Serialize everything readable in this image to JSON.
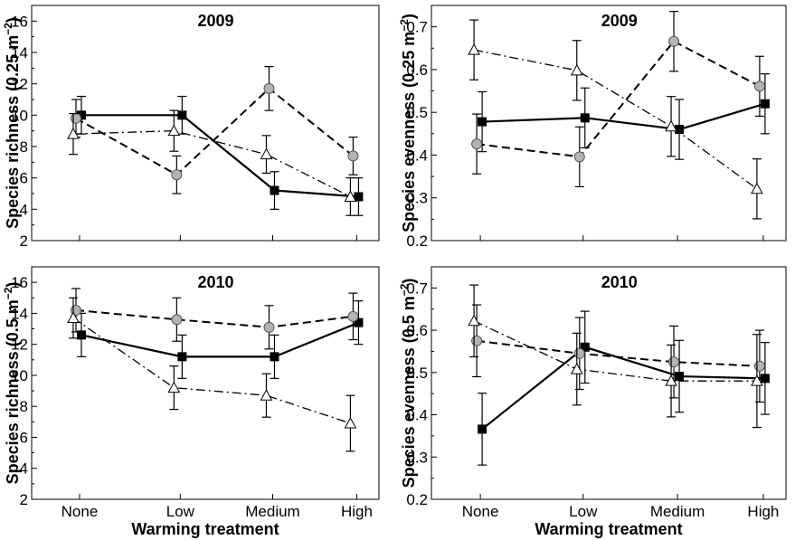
{
  "xlabel": "Warming treatment",
  "chart_data": [
    {
      "type": "line",
      "title": "2009",
      "ylabel": "Species richness (0.25 m",
      "ylabel_sup": "−2",
      "ylabel_end": ")",
      "ylim": [
        2,
        17
      ],
      "yticks": [
        2,
        4,
        6,
        8,
        10,
        12,
        14,
        16
      ],
      "categories": [
        "None",
        "Low",
        "Medium",
        "High"
      ],
      "series": [
        {
          "style": "solid-square",
          "values": [
            10.0,
            10.0,
            5.2,
            4.8
          ],
          "err": [
            1.2,
            1.2,
            1.2,
            1.2
          ]
        },
        {
          "style": "dash-circle",
          "values": [
            9.8,
            6.2,
            11.7,
            7.4
          ],
          "err": [
            1.2,
            1.2,
            1.4,
            1.2
          ]
        },
        {
          "style": "dashdot-triangle",
          "values": [
            8.8,
            9.0,
            7.5,
            4.8
          ],
          "err": [
            1.3,
            1.3,
            1.2,
            1.2
          ]
        }
      ]
    },
    {
      "type": "line",
      "title": "2009",
      "ylabel": "Species evenness (0.25 m",
      "ylabel_sup": "−2",
      "ylabel_end": ")",
      "ylim": [
        0.2,
        0.75
      ],
      "yticks": [
        0.2,
        0.3,
        0.4,
        0.5,
        0.6,
        0.7
      ],
      "categories": [
        "None",
        "Low",
        "Medium",
        "High"
      ],
      "series": [
        {
          "style": "solid-square",
          "values": [
            0.478,
            0.487,
            0.46,
            0.52
          ],
          "err": [
            0.07,
            0.07,
            0.07,
            0.07
          ]
        },
        {
          "style": "dash-circle",
          "values": [
            0.426,
            0.396,
            0.666,
            0.561
          ],
          "err": [
            0.07,
            0.07,
            0.07,
            0.07
          ]
        },
        {
          "style": "dashdot-triangle",
          "values": [
            0.646,
            0.598,
            0.467,
            0.321
          ],
          "err": [
            0.07,
            0.07,
            0.07,
            0.07
          ]
        }
      ]
    },
    {
      "type": "line",
      "title": "2010",
      "ylabel": "Species richness (0.5 m",
      "ylabel_sup": "−2",
      "ylabel_end": ")",
      "ylim": [
        2,
        17
      ],
      "yticks": [
        2,
        4,
        6,
        8,
        10,
        12,
        14,
        16
      ],
      "categories": [
        "None",
        "Low",
        "Medium",
        "High"
      ],
      "series": [
        {
          "style": "solid-square",
          "values": [
            12.6,
            11.2,
            11.2,
            13.4
          ],
          "err": [
            1.4,
            1.4,
            1.4,
            1.4
          ]
        },
        {
          "style": "dash-circle",
          "values": [
            14.2,
            13.6,
            13.1,
            13.8
          ],
          "err": [
            1.4,
            1.4,
            1.4,
            1.5
          ]
        },
        {
          "style": "dashdot-triangle",
          "values": [
            13.7,
            9.2,
            8.7,
            6.9
          ],
          "err": [
            1.3,
            1.4,
            1.4,
            1.8
          ]
        }
      ]
    },
    {
      "type": "line",
      "title": "2010",
      "ylabel": "Species evenness (0.5 m",
      "ylabel_sup": "−2",
      "ylabel_end": ")",
      "ylim": [
        0.2,
        0.75
      ],
      "yticks": [
        0.2,
        0.3,
        0.4,
        0.5,
        0.6,
        0.7
      ],
      "categories": [
        "None",
        "Low",
        "Medium",
        "High"
      ],
      "series": [
        {
          "style": "solid-square",
          "values": [
            0.366,
            0.56,
            0.491,
            0.486
          ],
          "err": [
            0.085,
            0.085,
            0.085,
            0.085
          ]
        },
        {
          "style": "dash-circle",
          "values": [
            0.575,
            0.545,
            0.525,
            0.515
          ],
          "err": [
            0.085,
            0.085,
            0.085,
            0.085
          ]
        },
        {
          "style": "dashdot-triangle",
          "values": [
            0.622,
            0.508,
            0.48,
            0.48
          ],
          "err": [
            0.085,
            0.085,
            0.085,
            0.11
          ]
        }
      ]
    }
  ]
}
